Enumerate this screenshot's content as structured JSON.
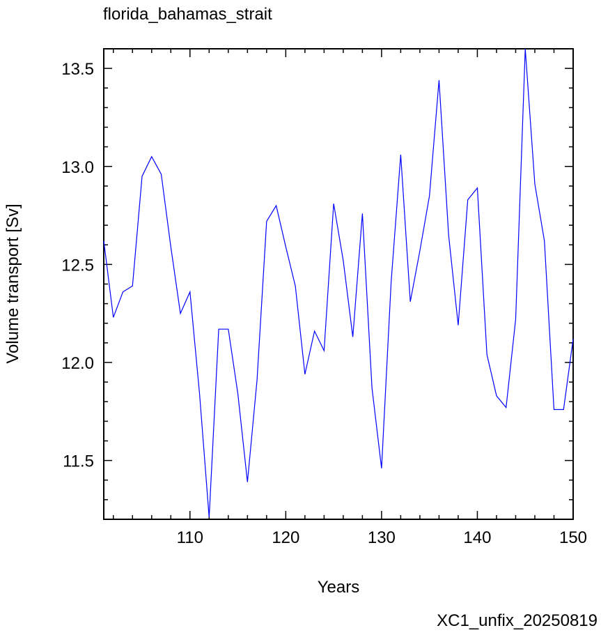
{
  "chart_data": {
    "type": "line",
    "title": "florida_bahamas_strait",
    "x_label": "Years",
    "y_label": "Volume transport [Sv]",
    "annotation": "XC1_unfix_20250819",
    "x": [
      101,
      102,
      103,
      104,
      105,
      106,
      107,
      108,
      109,
      110,
      111,
      112,
      113,
      114,
      115,
      116,
      117,
      118,
      119,
      120,
      121,
      122,
      123,
      124,
      125,
      126,
      127,
      128,
      129,
      130,
      131,
      132,
      133,
      134,
      135,
      136,
      137,
      138,
      139,
      140,
      141,
      142,
      143,
      144,
      145,
      146,
      147,
      148,
      149,
      150
    ],
    "series": [
      {
        "name": "florida_bahamas_strait",
        "color": "#0000ff",
        "values": [
          12.62,
          12.23,
          12.36,
          12.39,
          12.95,
          13.05,
          12.96,
          12.59,
          12.25,
          12.36,
          11.84,
          11.21,
          12.17,
          12.17,
          11.84,
          11.39,
          11.91,
          12.72,
          12.8,
          12.59,
          12.39,
          11.94,
          12.16,
          12.06,
          12.81,
          12.52,
          12.13,
          12.76,
          11.87,
          11.46,
          12.41,
          13.06,
          12.31,
          12.57,
          12.85,
          13.44,
          12.65,
          12.19,
          12.83,
          12.89,
          12.04,
          11.83,
          11.77,
          12.22,
          13.6,
          12.91,
          12.62,
          11.76,
          11.76,
          12.12
        ]
      }
    ],
    "xlim": [
      101,
      150
    ],
    "ylim": [
      11.2,
      13.6
    ],
    "xticks": [
      110,
      120,
      130,
      140,
      150
    ],
    "yticks": [
      11.5,
      {
        "value": 12,
        "label": "12.0"
      },
      12.5,
      {
        "value": 13,
        "label": "13.0"
      },
      13.5
    ],
    "xminorticks": [
      102,
      104,
      106,
      108,
      112,
      114,
      116,
      118,
      122,
      124,
      126,
      128,
      132,
      134,
      136,
      138,
      142,
      144,
      146,
      148
    ],
    "yminorticks": [
      11.3,
      11.4,
      11.6,
      11.7,
      11.8,
      11.9,
      12.1,
      12.2,
      12.3,
      12.4,
      12.6,
      12.7,
      12.8,
      12.9,
      13.1,
      13.2,
      13.3,
      13.4
    ],
    "annotation_color": "#0000ff"
  }
}
